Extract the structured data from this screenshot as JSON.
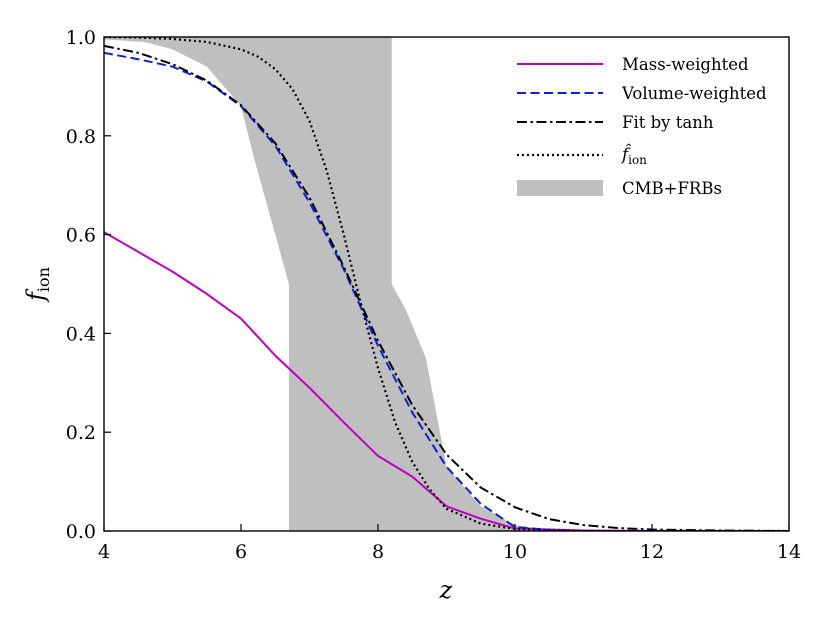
{
  "chart_data": {
    "type": "line",
    "title": "",
    "xlabel": "z",
    "ylabel_main": "f",
    "ylabel_sub": "ion",
    "xlim": [
      4,
      14
    ],
    "ylim": [
      0,
      1
    ],
    "xticks": [
      4,
      6,
      8,
      10,
      12,
      14
    ],
    "yticks": [
      0.0,
      0.2,
      0.4,
      0.6,
      0.8,
      1.0
    ],
    "xtick_labels": [
      "4",
      "6",
      "8",
      "10",
      "12",
      "14"
    ],
    "ytick_labels": [
      "0.0",
      "0.2",
      "0.4",
      "0.6",
      "0.8",
      "1.0"
    ],
    "legend_position": "top-right",
    "band": {
      "name": "CMB+FRBs",
      "color": "#bfbfbf",
      "upper": {
        "x": [
          4.0,
          5.0,
          5.5,
          6.0,
          8.2,
          8.2,
          9.0,
          10.0,
          14.0
        ],
        "y": [
          1.0,
          1.0,
          0.98,
          0.96,
          1.0,
          1.0,
          1.0,
          1.0,
          1.0
        ]
      },
      "region_polygon": [
        [
          4.0,
          1.0
        ],
        [
          8.2,
          1.0
        ],
        [
          8.2,
          0.5
        ],
        [
          8.4,
          0.45
        ],
        [
          8.7,
          0.35
        ],
        [
          9.0,
          0.13
        ],
        [
          9.5,
          0.05
        ],
        [
          10.0,
          0.012
        ],
        [
          10.5,
          0.003
        ],
        [
          11.0,
          0.0
        ],
        [
          6.7,
          0.0
        ],
        [
          6.7,
          0.5
        ],
        [
          6.5,
          0.6
        ],
        [
          6.2,
          0.75
        ],
        [
          6.0,
          0.86
        ],
        [
          5.5,
          0.94
        ],
        [
          5.0,
          0.975
        ],
        [
          4.6,
          0.99
        ],
        [
          4.0,
          0.995
        ]
      ]
    },
    "series": [
      {
        "name": "Mass-weighted",
        "color": "#c000c0",
        "style": "solid",
        "x": [
          4.0,
          4.5,
          5.0,
          5.5,
          6.0,
          6.5,
          7.0,
          7.5,
          8.0,
          8.5,
          9.0,
          9.5,
          10.0,
          11.0,
          12.0,
          13.0,
          14.0
        ],
        "y": [
          0.605,
          0.565,
          0.525,
          0.48,
          0.43,
          0.355,
          0.29,
          0.22,
          0.152,
          0.11,
          0.05,
          0.025,
          0.005,
          0.001,
          0.0,
          0.0,
          0.0
        ]
      },
      {
        "name": "Volume-weighted",
        "color": "#0b1fe0",
        "style": "dashed",
        "x": [
          4.0,
          4.5,
          5.0,
          5.5,
          6.0,
          6.5,
          7.0,
          7.5,
          8.0,
          8.5,
          9.0,
          9.5,
          10.0,
          10.5,
          11.0,
          12.0,
          14.0
        ],
        "y": [
          0.968,
          0.955,
          0.94,
          0.91,
          0.86,
          0.78,
          0.665,
          0.53,
          0.375,
          0.24,
          0.13,
          0.055,
          0.008,
          0.002,
          0.0,
          0.0,
          0.0
        ]
      },
      {
        "name": "Fit by tanh",
        "color": "#000000",
        "style": "dashdot",
        "x": [
          4.0,
          4.5,
          5.0,
          5.5,
          6.0,
          6.5,
          7.0,
          7.5,
          8.0,
          8.5,
          9.0,
          9.5,
          10.0,
          10.5,
          11.0,
          11.5,
          12.0,
          13.0,
          14.0
        ],
        "y": [
          0.982,
          0.968,
          0.945,
          0.912,
          0.862,
          0.785,
          0.675,
          0.535,
          0.385,
          0.255,
          0.155,
          0.088,
          0.048,
          0.024,
          0.012,
          0.006,
          0.003,
          0.001,
          0.0
        ]
      },
      {
        "name": "f̂ion",
        "legend_main": "f̂",
        "legend_sub": "ion",
        "color": "#000000",
        "style": "dotted",
        "x": [
          4.0,
          4.5,
          5.0,
          5.5,
          6.0,
          6.25,
          6.5,
          6.75,
          7.0,
          7.25,
          7.5,
          7.75,
          8.0,
          8.25,
          8.5,
          8.75,
          9.0,
          9.5,
          10.0,
          11.0,
          14.0
        ],
        "y": [
          1.0,
          0.999,
          0.996,
          0.99,
          0.975,
          0.96,
          0.935,
          0.895,
          0.83,
          0.73,
          0.6,
          0.46,
          0.33,
          0.22,
          0.14,
          0.085,
          0.045,
          0.015,
          0.004,
          0.0,
          0.0
        ]
      }
    ],
    "legend": [
      {
        "label": "Mass-weighted",
        "kind": "line",
        "series": 0
      },
      {
        "label": "Volume-weighted",
        "kind": "line",
        "series": 1
      },
      {
        "label": "Fit by tanh",
        "kind": "line",
        "series": 2
      },
      {
        "label_main": "f̂",
        "label_sub": "ion",
        "kind": "line",
        "series": 3
      },
      {
        "label": "CMB+FRBs",
        "kind": "patch"
      }
    ]
  }
}
